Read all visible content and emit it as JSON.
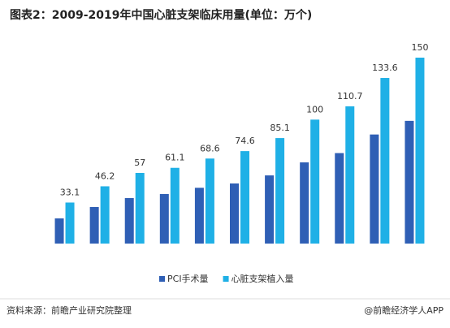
{
  "chart_data": {
    "type": "bar",
    "title": "图表2：2009-2019年中国心脏支架临床用量(单位：万个)",
    "categories": [
      null,
      null,
      null,
      null,
      null,
      null,
      null,
      null,
      null,
      null,
      null
    ],
    "series": [
      {
        "name": "PCI手术量",
        "color": "#2f5fb5",
        "values": [
          20.3,
          29.5,
          36.7,
          40,
          45,
          48.5,
          55,
          65.5,
          73,
          88,
          99
        ]
      },
      {
        "name": "心脏支架植入量",
        "color": "#1fb0e6",
        "values": [
          33.1,
          46.2,
          57,
          61.1,
          68.6,
          74.6,
          85.1,
          100,
          110.7,
          133.6,
          150
        ],
        "show_labels": true
      }
    ],
    "legend": "bottom"
  },
  "footer": {
    "source": "资料来源：前瞻产业研究院整理",
    "credit": "@前瞻经济学人APP"
  }
}
